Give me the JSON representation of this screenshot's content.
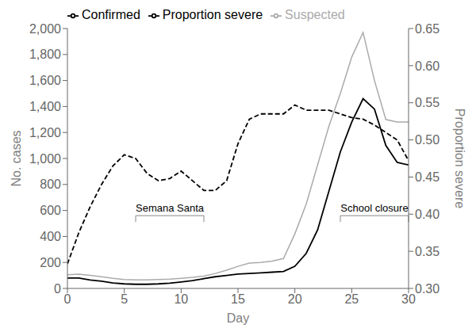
{
  "chart_data": {
    "type": "line",
    "xlabel": "Day",
    "ylabel": "No. cases",
    "y2label": "Proportion severe",
    "x": [
      0,
      1,
      2,
      3,
      4,
      5,
      6,
      7,
      8,
      9,
      10,
      11,
      12,
      13,
      14,
      15,
      16,
      17,
      18,
      19,
      20,
      21,
      22,
      23,
      24,
      25,
      26,
      27,
      28,
      29,
      30
    ],
    "series": [
      {
        "name": "Suspected",
        "color": "#aaaaaa",
        "line_style": "solid",
        "axis": "y",
        "values": [
          105,
          110,
          100,
          90,
          78,
          68,
          65,
          65,
          68,
          72,
          78,
          85,
          95,
          115,
          140,
          170,
          195,
          200,
          210,
          230,
          420,
          650,
          950,
          1250,
          1500,
          1780,
          1970,
          1600,
          1300,
          1280,
          1280
        ]
      },
      {
        "name": "Confirmed",
        "color": "#000000",
        "line_style": "solid",
        "axis": "y",
        "values": [
          80,
          80,
          65,
          55,
          42,
          35,
          32,
          32,
          35,
          40,
          50,
          60,
          75,
          90,
          100,
          110,
          115,
          120,
          125,
          130,
          170,
          270,
          450,
          750,
          1050,
          1280,
          1460,
          1380,
          1100,
          970,
          950
        ]
      },
      {
        "name": "Proportion severe",
        "color": "#000000",
        "line_style": "dashed",
        "axis": "y2",
        "values": [
          0.333,
          0.375,
          0.41,
          0.44,
          0.465,
          0.48,
          0.475,
          0.455,
          0.445,
          0.448,
          0.458,
          0.445,
          0.432,
          0.432,
          0.445,
          0.495,
          0.528,
          0.535,
          0.535,
          0.535,
          0.547,
          0.54,
          0.54,
          0.54,
          0.535,
          0.53,
          0.528,
          0.52,
          0.51,
          0.5,
          0.472
        ]
      }
    ],
    "xlim": [
      0,
      30
    ],
    "xticks": [
      0,
      5,
      10,
      15,
      20,
      25,
      30
    ],
    "ylim": [
      0,
      2000
    ],
    "yticks": [
      0,
      200,
      400,
      600,
      800,
      {
        "value": 1000,
        "label": "1,000"
      },
      {
        "value": 1200,
        "label": "1,200"
      },
      {
        "value": 1400,
        "label": "1,400"
      },
      {
        "value": 1600,
        "label": "1,600"
      },
      {
        "value": 1800,
        "label": "1,800"
      },
      {
        "value": 2000,
        "label": "2,000"
      }
    ],
    "y2lim": [
      0.3,
      0.65
    ],
    "y2ticks": [
      {
        "value": 0.3,
        "label": "0.30"
      },
      0.35,
      {
        "value": 0.4,
        "label": "0.40"
      },
      0.45,
      {
        "value": 0.5,
        "label": "0.50"
      },
      0.55,
      {
        "value": 0.6,
        "label": "0.60"
      },
      0.65
    ],
    "annotations": [
      {
        "text": "Semana Santa",
        "x": [
          6,
          12
        ],
        "y": 560
      },
      {
        "text": "School closure",
        "x": [
          24,
          30
        ],
        "y": 560
      }
    ],
    "legend": "upper left",
    "grid": false
  }
}
